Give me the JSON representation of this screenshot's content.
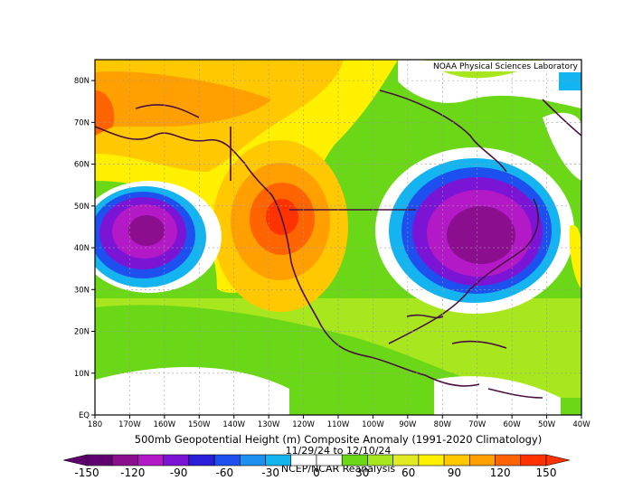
{
  "credit": "NOAA Physical Sciences Laboratory",
  "title": "500mb Geopotential Height (m) Composite Anomaly (1991-2020 Climatology)",
  "dates": "11/29/24  to 12/10/24",
  "source": "NCEP/NCAR Reanalysis",
  "lat_ticks": [
    "EQ",
    "10N",
    "20N",
    "30N",
    "40N",
    "50N",
    "60N",
    "70N",
    "80N"
  ],
  "lon_ticks": [
    "180",
    "170W",
    "160W",
    "150W",
    "140W",
    "130W",
    "120W",
    "110W",
    "100W",
    "90W",
    "80W",
    "70W",
    "60W",
    "50W",
    "40W"
  ],
  "colorbar": {
    "labels": [
      "-150",
      "-120",
      "-90",
      "-60",
      "-30",
      "0",
      "30",
      "60",
      "90",
      "120",
      "150"
    ],
    "colors": [
      "#600070",
      "#8a0e8e",
      "#b419c8",
      "#7c14d6",
      "#2a1ed8",
      "#1e50f0",
      "#1e90f0",
      "#14b4f0",
      "#ffffff",
      "#ffffff",
      "#6ad816",
      "#a8e61e",
      "#e2ea24",
      "#fff000",
      "#ffc800",
      "#ffa000",
      "#ff6400",
      "#ff3200"
    ]
  }
}
